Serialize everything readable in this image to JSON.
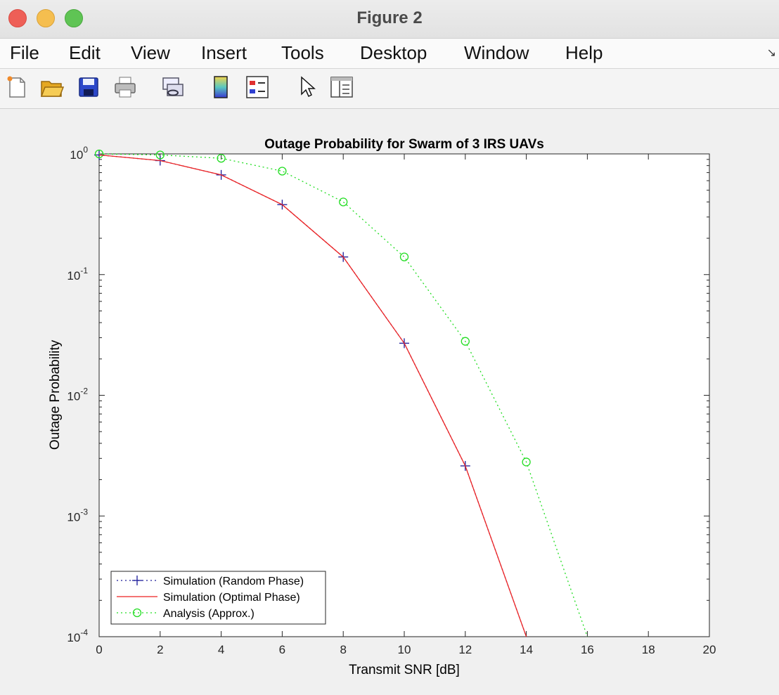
{
  "window": {
    "title": "Figure 2"
  },
  "menu": {
    "items": [
      "File",
      "Edit",
      "View",
      "Insert",
      "Tools",
      "Desktop",
      "Window",
      "Help"
    ]
  },
  "toolbar": {
    "icons": [
      "new-figure-icon",
      "open-file-icon",
      "save-icon",
      "print-icon",
      "link-plot-icon",
      "colorbar-icon",
      "legend-icon",
      "pointer-icon",
      "property-editor-icon"
    ]
  },
  "chart_data": {
    "type": "line",
    "title": "Outage Probability for Swarm of 3 IRS UAVs",
    "xlabel": "Transmit SNR [dB]",
    "ylabel": "Outage Probability",
    "xlim": [
      0,
      20
    ],
    "ylim": [
      0.0001,
      1
    ],
    "yscale": "log",
    "xticks": [
      "0",
      "2",
      "4",
      "6",
      "8",
      "10",
      "12",
      "14",
      "16",
      "18",
      "20"
    ],
    "yticks": [
      {
        "base": "10",
        "exp": "0"
      },
      {
        "base": "10",
        "exp": "-1"
      },
      {
        "base": "10",
        "exp": "-2"
      },
      {
        "base": "10",
        "exp": "-3"
      },
      {
        "base": "10",
        "exp": "-4"
      }
    ],
    "legend_position": "bottom-left",
    "grid": false,
    "series": [
      {
        "name": "Simulation (Random Phase)",
        "color": "#1a1a99",
        "line": "dotted",
        "marker": "plus",
        "x": [
          0,
          2,
          4,
          6,
          8,
          10,
          12,
          14
        ],
        "y": [
          0.98,
          0.88,
          0.67,
          0.38,
          0.14,
          0.027,
          0.0026,
          0.0001
        ]
      },
      {
        "name": "Simulation (Optimal Phase)",
        "color": "#ee2222",
        "line": "solid",
        "marker": "none",
        "x": [
          0,
          2,
          4,
          6,
          8,
          10,
          12,
          14
        ],
        "y": [
          0.98,
          0.88,
          0.67,
          0.38,
          0.14,
          0.027,
          0.0026,
          0.0001
        ]
      },
      {
        "name": "Analysis (Approx.)",
        "color": "#22dd22",
        "line": "dotted",
        "marker": "circle",
        "x": [
          0,
          2,
          4,
          6,
          8,
          10,
          12,
          14,
          16
        ],
        "y": [
          1.0,
          0.98,
          0.92,
          0.72,
          0.4,
          0.14,
          0.028,
          0.0028,
          0.0001
        ]
      }
    ]
  }
}
